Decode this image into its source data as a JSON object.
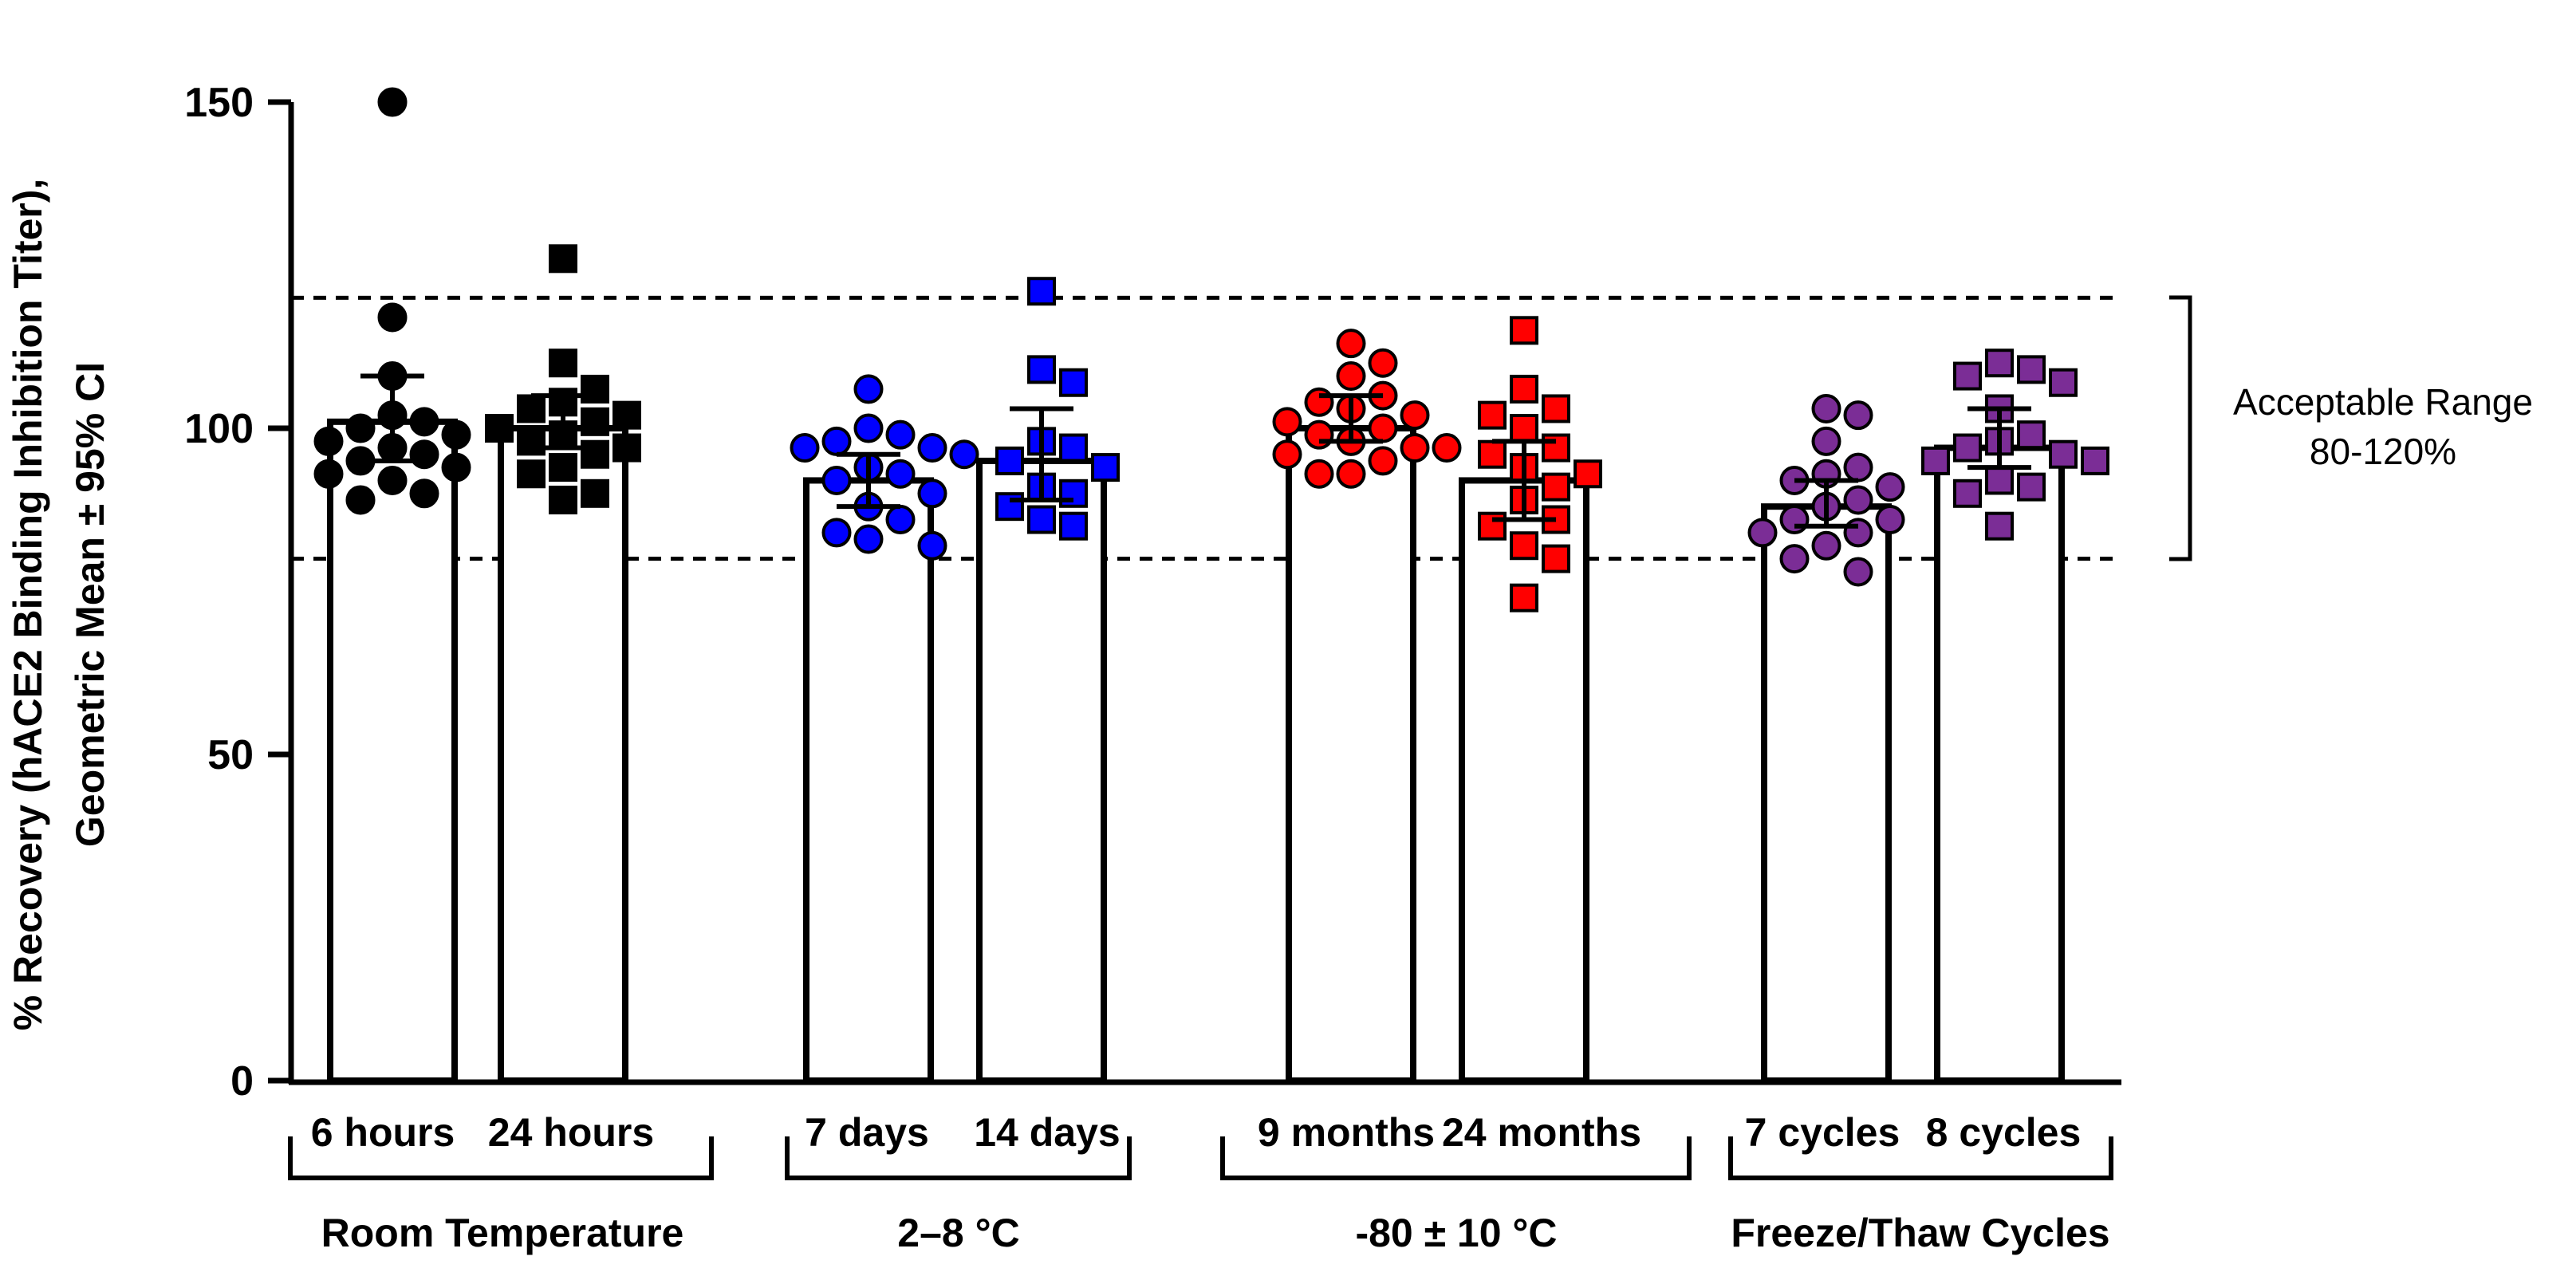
{
  "chart_data": {
    "type": "bar",
    "ylabel_line1": "% Recovery (hACE2 Binding Inhibition Titer),",
    "ylabel_line2": "Geometric Mean ± 95% CI",
    "ylim": [
      0,
      150
    ],
    "yticks": [
      0,
      50,
      100,
      150
    ],
    "reference_lines": [
      80,
      120
    ],
    "range_label_line1": "Acceptable Range",
    "range_label_line2": "80-120%",
    "categories": [
      "6 hours",
      "24 hours",
      "7 days",
      "14 days",
      "9 months",
      "24 months",
      "7 cycles",
      "8 cycles"
    ],
    "groups": [
      {
        "label": "Room Temperature",
        "members": [
          0,
          1
        ]
      },
      {
        "label": "2–8 °C",
        "members": [
          2,
          3
        ]
      },
      {
        "label": "-80 ± 10 °C",
        "members": [
          4,
          5
        ]
      },
      {
        "label": "Freeze/Thaw Cycles",
        "members": [
          6,
          7
        ]
      }
    ],
    "series": [
      {
        "name": "6 hours",
        "geomean": 101,
        "ci": [
          95,
          108
        ],
        "marker": "circle",
        "color": "#000000",
        "points": [
          150,
          117,
          108,
          102,
          101,
          100,
          99,
          98,
          97,
          96,
          95,
          94,
          93,
          92,
          90,
          89
        ]
      },
      {
        "name": "24 hours",
        "geomean": 100,
        "ci": [
          97,
          105
        ],
        "marker": "square",
        "color": "#000000",
        "points": [
          126,
          110,
          106,
          104,
          103,
          102,
          101,
          100,
          99,
          98,
          97,
          96,
          94,
          93,
          90,
          89
        ]
      },
      {
        "name": "7 days",
        "geomean": 92,
        "ci": [
          88,
          96
        ],
        "marker": "circle",
        "color": "#0000ff",
        "points": [
          106,
          100,
          99,
          98,
          97,
          97,
          96,
          94,
          93,
          92,
          90,
          88,
          86,
          84,
          83,
          82
        ]
      },
      {
        "name": "14 days",
        "geomean": 95,
        "ci": [
          89,
          103
        ],
        "marker": "square",
        "color": "#0000ff",
        "points": [
          121,
          109,
          107,
          98,
          97,
          95,
          94,
          91,
          90,
          88,
          86,
          85
        ]
      },
      {
        "name": "9 months",
        "geomean": 100,
        "ci": [
          98,
          105
        ],
        "marker": "circle",
        "color": "#ff0000",
        "points": [
          113,
          110,
          108,
          105,
          104,
          103,
          102,
          101,
          100,
          99,
          98,
          97,
          97,
          96,
          95,
          93,
          93
        ]
      },
      {
        "name": "24 months",
        "geomean": 92,
        "ci": [
          86,
          98
        ],
        "marker": "square",
        "color": "#ff0000",
        "points": [
          115,
          106,
          103,
          102,
          100,
          97,
          96,
          94,
          93,
          91,
          89,
          86,
          85,
          82,
          80,
          74
        ]
      },
      {
        "name": "7 cycles",
        "geomean": 88,
        "ci": [
          85,
          92
        ],
        "marker": "circle",
        "color": "#7b2d96",
        "points": [
          103,
          102,
          98,
          94,
          93,
          92,
          91,
          89,
          88,
          86,
          86,
          84,
          84,
          82,
          80,
          78
        ]
      },
      {
        "name": "8 cycles",
        "geomean": 97,
        "ci": [
          94,
          103
        ],
        "marker": "square",
        "color": "#7b2d96",
        "points": [
          110,
          109,
          108,
          107,
          103,
          99,
          98,
          97,
          96,
          95,
          95,
          92,
          91,
          90,
          85
        ]
      }
    ]
  }
}
